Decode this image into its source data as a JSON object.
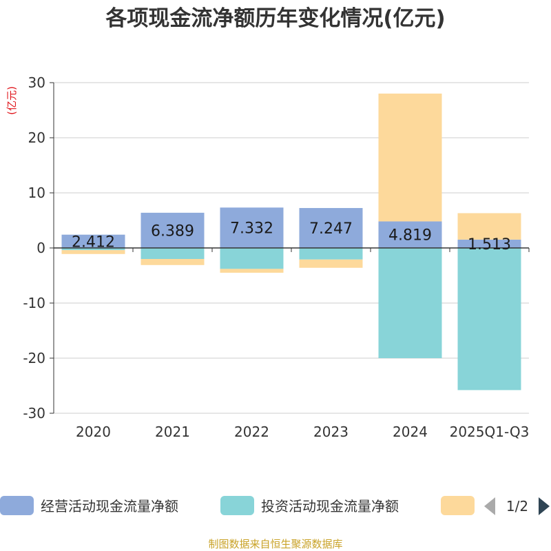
{
  "chart_data": {
    "type": "bar",
    "stacked": true,
    "title": "各项现金流净额历年变化情况(亿元)",
    "ylabel": "(亿元)",
    "xlabel": "",
    "ylim": [
      -30,
      30
    ],
    "yticks": [
      30,
      20,
      10,
      0,
      -10,
      -20,
      -30
    ],
    "grid": true,
    "categories": [
      "2020",
      "2021",
      "2022",
      "2023",
      "2024",
      "2025Q1-Q3"
    ],
    "series": [
      {
        "name": "经营活动现金流量净额",
        "color": "#8eaadb",
        "values": [
          2.412,
          6.389,
          7.332,
          7.247,
          4.819,
          1.513
        ],
        "labels": [
          "2.412",
          "6.389",
          "7.332",
          "7.247",
          "4.819",
          "1.513"
        ]
      },
      {
        "name": "投资活动现金流量净额",
        "color": "#88d4d8",
        "values": [
          -0.4,
          -2.0,
          -3.8,
          -2.1,
          -20.0,
          -25.8
        ]
      },
      {
        "name": "",
        "color": "#fdd99b",
        "values": [
          -0.7,
          -1.1,
          -0.7,
          -1.5,
          23.2,
          4.8
        ]
      }
    ],
    "legend": {
      "position": "bottom",
      "page": "1/2"
    },
    "source": "制图数据来自恒生聚源数据库"
  }
}
